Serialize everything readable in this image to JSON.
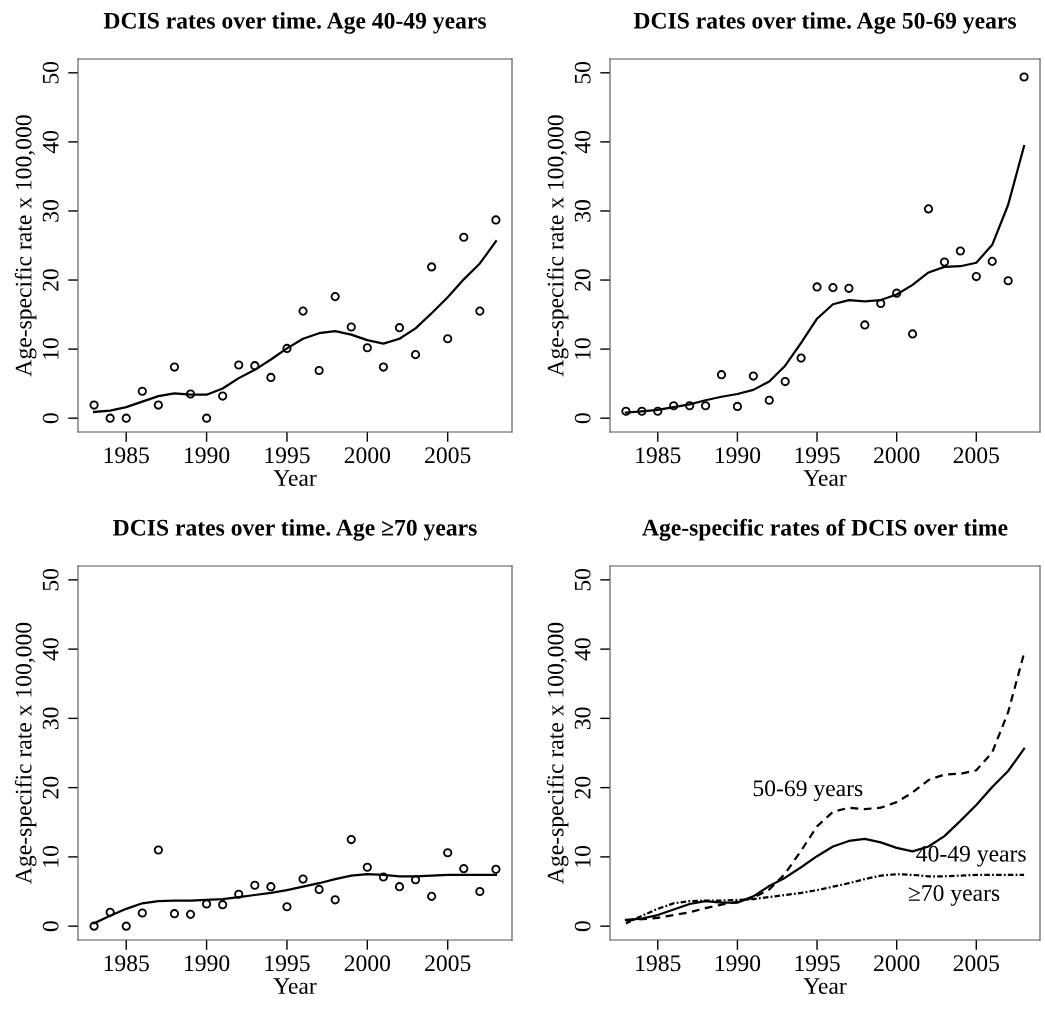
{
  "chart_data": [
    {
      "type": "line",
      "title": "DCIS rates over time. Age 40-49 years",
      "xlabel": "Year",
      "ylabel": "Age-specific rate x 100,000",
      "xlim": [
        1982,
        2009
      ],
      "ylim": [
        -2,
        52
      ],
      "xticks": [
        1985,
        1990,
        1995,
        2000,
        2005
      ],
      "yticks": [
        0,
        10,
        20,
        30,
        40,
        50
      ],
      "grid": false,
      "x": [
        1983,
        1984,
        1985,
        1986,
        1987,
        1988,
        1989,
        1990,
        1991,
        1992,
        1993,
        1994,
        1995,
        1996,
        1997,
        1998,
        1999,
        2000,
        2001,
        2002,
        2003,
        2004,
        2005,
        2006,
        2007,
        2008
      ],
      "series": [
        {
          "type": "scatter",
          "marker": "circle",
          "color": "#000000",
          "values": [
            1.9,
            0,
            0,
            3.9,
            1.9,
            7.4,
            3.5,
            0,
            3.2,
            7.7,
            7.6,
            5.9,
            10.1,
            15.5,
            6.9,
            17.6,
            13.2,
            10.2,
            7.4,
            13.1,
            9.2,
            21.9,
            11.5,
            26.2,
            15.5,
            28.7
          ]
        },
        {
          "type": "line",
          "line_style": "solid",
          "color": "#000000",
          "values": [
            0.9,
            1.1,
            1.6,
            2.4,
            3.2,
            3.6,
            3.4,
            3.4,
            4.3,
            5.8,
            7.0,
            8.5,
            10.1,
            11.5,
            12.3,
            12.6,
            12.1,
            11.3,
            10.8,
            11.5,
            13.0,
            15.2,
            17.5,
            20.1,
            22.4,
            25.6
          ]
        }
      ]
    },
    {
      "type": "line",
      "title": "DCIS rates over time. Age 50-69 years",
      "xlabel": "Year",
      "ylabel": "Age-specific rate x 100,000",
      "xlim": [
        1982,
        2009
      ],
      "ylim": [
        -2,
        52
      ],
      "xticks": [
        1985,
        1990,
        1995,
        2000,
        2005
      ],
      "yticks": [
        0,
        10,
        20,
        30,
        40,
        50
      ],
      "grid": false,
      "x": [
        1983,
        1984,
        1985,
        1986,
        1987,
        1988,
        1989,
        1990,
        1991,
        1992,
        1993,
        1994,
        1995,
        1996,
        1997,
        1998,
        1999,
        2000,
        2001,
        2002,
        2003,
        2004,
        2005,
        2006,
        2007,
        2008
      ],
      "series": [
        {
          "type": "scatter",
          "marker": "circle",
          "color": "#000000",
          "values": [
            1.0,
            1.0,
            1.0,
            1.8,
            1.8,
            1.8,
            6.3,
            1.7,
            6.1,
            2.6,
            5.3,
            8.7,
            19.0,
            18.9,
            18.8,
            13.5,
            16.6,
            18.1,
            12.2,
            30.3,
            22.6,
            24.2,
            20.5,
            22.7,
            19.9,
            49.4
          ]
        },
        {
          "type": "line",
          "line_style": "solid",
          "color": "#000000",
          "values": [
            0.8,
            1.0,
            1.2,
            1.6,
            2.0,
            2.6,
            3.1,
            3.5,
            4.1,
            5.3,
            7.6,
            10.9,
            14.4,
            16.5,
            17.1,
            16.9,
            17.1,
            17.9,
            19.3,
            21.1,
            21.9,
            22.0,
            22.5,
            25.1,
            30.9,
            39.4
          ]
        }
      ]
    },
    {
      "type": "line",
      "title": "DCIS rates over time. Age ≥70 years",
      "xlabel": "Year",
      "ylabel": "Age-specific rate x 100,000",
      "xlim": [
        1982,
        2009
      ],
      "ylim": [
        -2,
        52
      ],
      "xticks": [
        1985,
        1990,
        1995,
        2000,
        2005
      ],
      "yticks": [
        0,
        10,
        20,
        30,
        40,
        50
      ],
      "grid": false,
      "x": [
        1983,
        1984,
        1985,
        1986,
        1987,
        1988,
        1989,
        1990,
        1991,
        1992,
        1993,
        1994,
        1995,
        1996,
        1997,
        1998,
        1999,
        2000,
        2001,
        2002,
        2003,
        2004,
        2005,
        2006,
        2007,
        2008
      ],
      "series": [
        {
          "type": "scatter",
          "marker": "circle",
          "color": "#000000",
          "values": [
            0,
            2.0,
            0,
            1.9,
            11.0,
            1.8,
            1.7,
            3.2,
            3.1,
            4.6,
            5.9,
            5.7,
            2.8,
            6.8,
            5.3,
            3.8,
            12.5,
            8.5,
            7.1,
            5.7,
            6.7,
            4.3,
            10.6,
            8.3,
            5.0,
            8.2
          ]
        },
        {
          "type": "line",
          "line_style": "solid",
          "color": "#000000",
          "values": [
            0.4,
            1.5,
            2.5,
            3.3,
            3.6,
            3.7,
            3.7,
            3.8,
            3.9,
            4.2,
            4.5,
            4.8,
            5.2,
            5.7,
            6.2,
            6.8,
            7.3,
            7.5,
            7.4,
            7.2,
            7.2,
            7.3,
            7.4,
            7.4,
            7.4,
            7.4
          ]
        }
      ]
    },
    {
      "type": "line",
      "title": "Age-specific rates of DCIS over time",
      "xlabel": "Year",
      "ylabel": "Age-specific rate x 100,000",
      "xlim": [
        1982,
        2009
      ],
      "ylim": [
        -2,
        52
      ],
      "xticks": [
        1985,
        1990,
        1995,
        2000,
        2005
      ],
      "yticks": [
        0,
        10,
        20,
        30,
        40,
        50
      ],
      "grid": false,
      "x": [
        1983,
        1984,
        1985,
        1986,
        1987,
        1988,
        1989,
        1990,
        1991,
        1992,
        1993,
        1994,
        1995,
        1996,
        1997,
        1998,
        1999,
        2000,
        2001,
        2002,
        2003,
        2004,
        2005,
        2006,
        2007,
        2008
      ],
      "series": [
        {
          "type": "line",
          "line_style": "solid",
          "color": "#000000",
          "values": [
            0.9,
            1.1,
            1.6,
            2.4,
            3.2,
            3.6,
            3.4,
            3.4,
            4.3,
            5.8,
            7.0,
            8.5,
            10.1,
            11.5,
            12.3,
            12.6,
            12.1,
            11.3,
            10.8,
            11.5,
            13.0,
            15.2,
            17.5,
            20.1,
            22.4,
            25.6
          ]
        },
        {
          "type": "line",
          "line_style": "dashed",
          "color": "#000000",
          "values": [
            0.8,
            1.0,
            1.2,
            1.6,
            2.0,
            2.6,
            3.1,
            3.5,
            4.1,
            5.3,
            7.6,
            10.9,
            14.4,
            16.5,
            17.1,
            16.9,
            17.1,
            17.9,
            19.3,
            21.1,
            21.9,
            22.0,
            22.5,
            25.1,
            30.9,
            39.4
          ]
        },
        {
          "type": "line",
          "line_style": "dotted",
          "color": "#000000",
          "values": [
            0.4,
            1.5,
            2.5,
            3.3,
            3.6,
            3.7,
            3.7,
            3.8,
            3.9,
            4.2,
            4.5,
            4.8,
            5.2,
            5.7,
            6.2,
            6.8,
            7.3,
            7.5,
            7.4,
            7.2,
            7.2,
            7.3,
            7.4,
            7.4,
            7.4,
            7.4
          ]
        }
      ],
      "annotations": [
        "50-69 years",
        "40-49 years",
        "≥70 years"
      ]
    }
  ]
}
